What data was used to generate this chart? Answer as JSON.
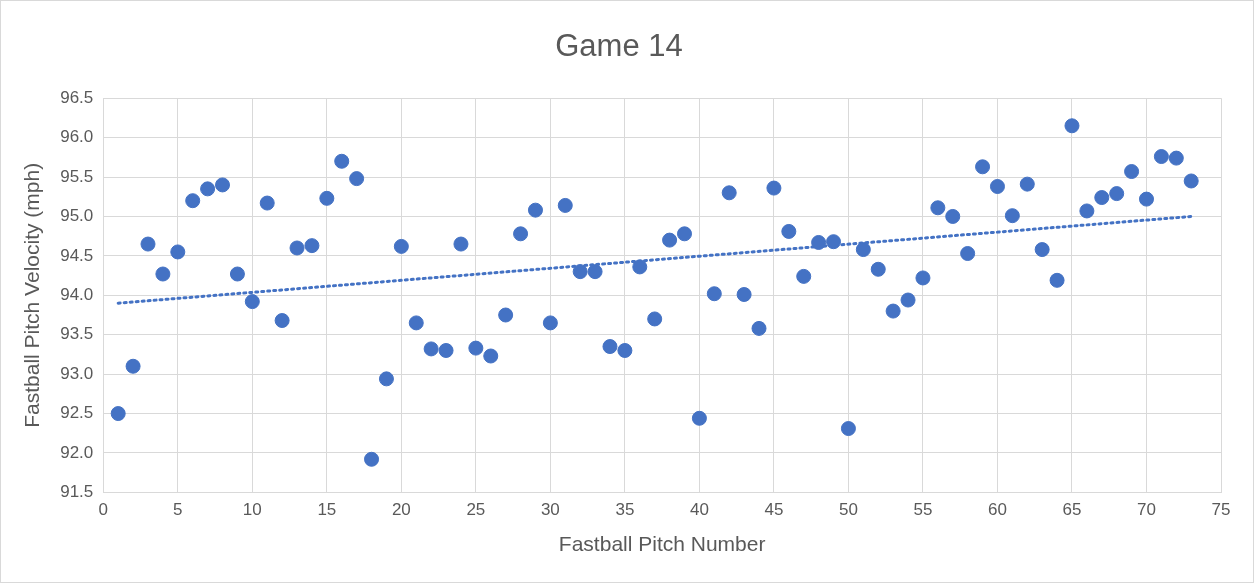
{
  "chart_data": {
    "type": "scatter",
    "title": "Game 14",
    "xlabel": "Fastball Pitch Number",
    "ylabel": "Fastball Pitch Velocity (mph)",
    "xlim": [
      0,
      75
    ],
    "xticks": [
      0,
      5,
      10,
      15,
      20,
      25,
      30,
      35,
      40,
      45,
      50,
      55,
      60,
      65,
      70,
      75
    ],
    "ylim": [
      91.5,
      96.5
    ],
    "yticks": [
      {
        "value": 91.5,
        "label": "91.5"
      },
      {
        "value": 92,
        "label": "92.0"
      },
      {
        "value": 92.5,
        "label": "92.5"
      },
      {
        "value": 93,
        "label": "93.0"
      },
      {
        "value": 93.5,
        "label": "93.5"
      },
      {
        "value": 94,
        "label": "94.0"
      },
      {
        "value": 94.5,
        "label": "94.5"
      },
      {
        "value": 95,
        "label": "95.0"
      },
      {
        "value": 95.5,
        "label": "95.5"
      },
      {
        "value": 96,
        "label": "96.0"
      },
      {
        "value": 96.5,
        "label": "96.5"
      }
    ],
    "grid": true,
    "series": [
      {
        "type": "scatter",
        "marker": "circle",
        "color": "#4472c4",
        "x": [
          1,
          2,
          3,
          4,
          5,
          6,
          7,
          8,
          9,
          10,
          11,
          12,
          13,
          14,
          15,
          16,
          17,
          18,
          19,
          20,
          21,
          22,
          23,
          24,
          25,
          26,
          27,
          28,
          29,
          30,
          31,
          32,
          33,
          34,
          35,
          36,
          37,
          38,
          39,
          40,
          41,
          42,
          43,
          44,
          45,
          46,
          47,
          48,
          49,
          50,
          51,
          52,
          53,
          54,
          55,
          56,
          57,
          58,
          59,
          60,
          61,
          62,
          63,
          64,
          65,
          66,
          67,
          68,
          69,
          70,
          71,
          72,
          73
        ],
        "values": [
          92.5,
          93.1,
          94.65,
          94.27,
          94.55,
          95.2,
          95.35,
          95.4,
          94.27,
          93.92,
          95.17,
          93.68,
          94.6,
          94.63,
          95.23,
          95.7,
          95.48,
          91.92,
          92.94,
          94.62,
          93.65,
          93.32,
          93.3,
          94.65,
          93.33,
          93.23,
          93.75,
          94.78,
          95.08,
          93.65,
          95.14,
          94.3,
          94.3,
          93.35,
          93.3,
          94.36,
          93.7,
          94.7,
          94.78,
          92.44,
          94.02,
          95.3,
          94.01,
          93.58,
          95.36,
          94.81,
          94.24,
          94.67,
          94.68,
          92.31,
          94.58,
          94.33,
          93.8,
          93.94,
          94.22,
          95.11,
          95.0,
          94.53,
          95.63,
          95.38,
          95.01,
          95.41,
          94.58,
          94.19,
          96.15,
          95.07,
          95.24,
          95.29,
          95.57,
          95.22,
          95.76,
          95.74,
          95.45
        ]
      },
      {
        "type": "line",
        "marker": "none",
        "color": "#4472c4",
        "line_style": "dotted",
        "x": [
          1,
          73
        ],
        "values": [
          93.9,
          95.0
        ]
      }
    ]
  }
}
